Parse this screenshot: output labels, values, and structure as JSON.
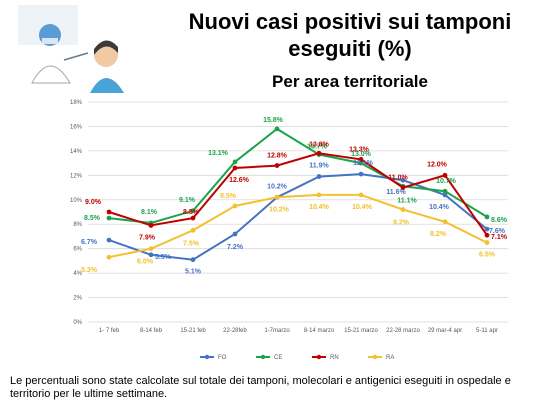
{
  "page": {
    "title": "Nuovi casi positivi sui tamponi eseguiti (%)",
    "subtitle": "Per area territoriale",
    "footnote": "Le percentuali sono state calcolate sul totale dei tamponi, molecolari e antigenici eseguiti in ospedale e territorio per le ultime settimane."
  },
  "chart_data": {
    "type": "line",
    "title": "Nuovi casi positivi sui tamponi eseguiti (%)",
    "subtitle": "Per area territoriale",
    "categories": [
      "1- 7 feb",
      "8-14 feb",
      "15-21 feb",
      "22-28feb",
      "1-7marzo",
      "8-14 marzo",
      "15-21 marzo",
      "22-28 marzo",
      "29 mar-4 apr",
      "5-11 apr"
    ],
    "ylim": [
      0,
      18
    ],
    "yticks": [
      "0%",
      "2%",
      "4%",
      "6%",
      "8%",
      "10%",
      "12%",
      "14%",
      "16%",
      "18%"
    ],
    "grid": true,
    "legend_position": "bottom",
    "series": [
      {
        "name": "FO",
        "color": "#4472C4",
        "values": [
          6.7,
          5.5,
          5.1,
          7.2,
          10.2,
          11.9,
          12.1,
          11.6,
          10.4,
          7.6
        ],
        "labels": [
          "6.7%",
          "5.5%",
          "5.1%",
          "7.2%",
          "10.2%",
          "11.9%",
          "12.1%",
          "11.6%",
          "10.4%",
          "7.6%"
        ]
      },
      {
        "name": "CE",
        "color": "#1BA34A",
        "values": [
          8.5,
          8.1,
          9.1,
          13.1,
          15.8,
          13.7,
          13.0,
          11.1,
          10.7,
          8.6
        ],
        "labels": [
          "8.5%",
          "8.1%",
          "9.1%",
          "13.1%",
          "15.8%",
          "13.7%",
          "13.0%",
          "11.1%",
          "10.7%",
          "8.6%"
        ]
      },
      {
        "name": "RN",
        "color": "#C00000",
        "values": [
          9.0,
          7.9,
          8.5,
          12.6,
          12.8,
          13.8,
          13.3,
          11.0,
          12.0,
          7.1
        ],
        "labels": [
          "9.0%",
          "7.9%",
          "8.5%",
          "12.6%",
          "12.8%",
          "13.8%",
          "13.3%",
          "11.0%",
          "12.0%",
          "7.1%"
        ]
      },
      {
        "name": "RA",
        "color": "#F2C12E",
        "values": [
          5.3,
          6.0,
          7.5,
          9.5,
          10.2,
          10.4,
          10.4,
          9.2,
          8.2,
          6.5
        ],
        "labels": [
          "5.3%",
          "6.0%",
          "7.5%",
          "9.5%",
          "10.2%",
          "10.4%",
          "10.4%",
          "9.2%",
          "8.2%",
          "6.5%"
        ]
      }
    ]
  }
}
